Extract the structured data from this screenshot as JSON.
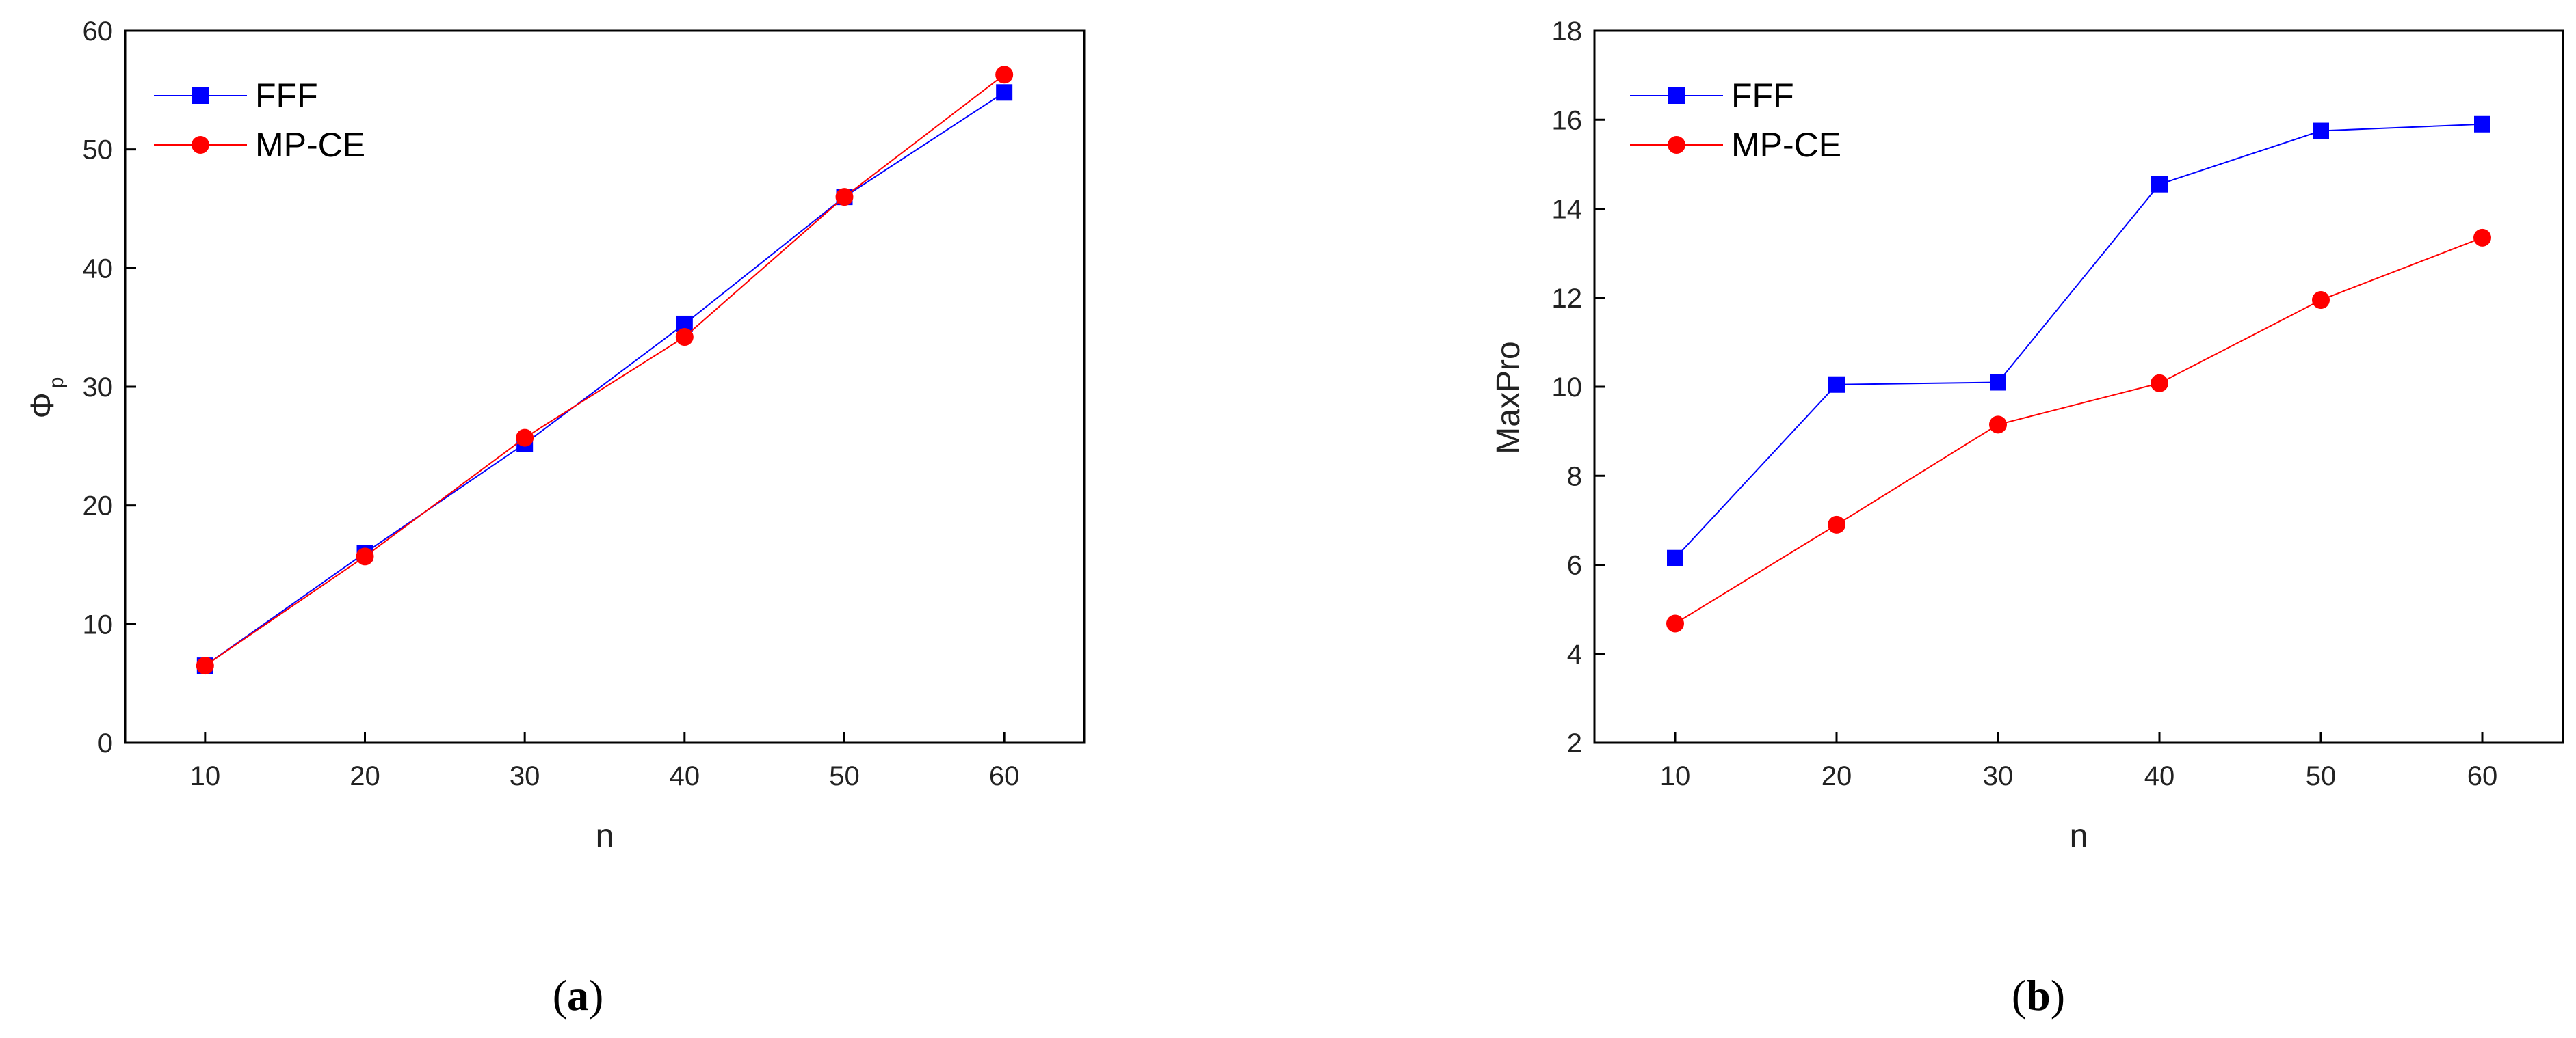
{
  "chart_data": [
    {
      "type": "line",
      "panel_label": "a",
      "xlabel": "n",
      "ylabel": "Φ",
      "ylabel_subscript": "p",
      "xlim": [
        5,
        65
      ],
      "ylim": [
        0,
        60
      ],
      "xticks": [
        10,
        20,
        30,
        40,
        50,
        60
      ],
      "yticks": [
        0,
        10,
        20,
        30,
        40,
        50,
        60
      ],
      "legend_position": "top-left",
      "series": [
        {
          "name": "FFF",
          "color": "#0000ff",
          "marker": "square",
          "x": [
            10,
            20,
            30,
            40,
            50,
            60
          ],
          "y": [
            6.5,
            16.0,
            25.2,
            35.3,
            46.0,
            54.8
          ]
        },
        {
          "name": "MP-CE",
          "color": "#ff0000",
          "marker": "circle",
          "x": [
            10,
            20,
            30,
            40,
            50,
            60
          ],
          "y": [
            6.5,
            15.7,
            25.7,
            34.2,
            46.0,
            56.3
          ]
        }
      ]
    },
    {
      "type": "line",
      "panel_label": "b",
      "xlabel": "n",
      "ylabel": "MaxPro",
      "xlim": [
        5,
        65
      ],
      "ylim": [
        2,
        18
      ],
      "xticks": [
        10,
        20,
        30,
        40,
        50,
        60
      ],
      "yticks": [
        2,
        4,
        6,
        8,
        10,
        12,
        14,
        16,
        18
      ],
      "legend_position": "top-left",
      "series": [
        {
          "name": "FFF",
          "color": "#0000ff",
          "marker": "square",
          "x": [
            10,
            20,
            30,
            40,
            50,
            60
          ],
          "y": [
            6.15,
            10.05,
            10.1,
            14.55,
            15.75,
            15.9
          ]
        },
        {
          "name": "MP-CE",
          "color": "#ff0000",
          "marker": "circle",
          "x": [
            10,
            20,
            30,
            40,
            50,
            60
          ],
          "y": [
            4.68,
            6.9,
            9.15,
            10.08,
            11.95,
            13.35
          ]
        }
      ]
    }
  ]
}
